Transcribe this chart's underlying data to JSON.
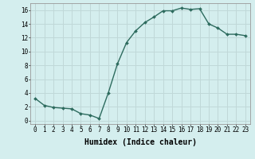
{
  "x": [
    0,
    1,
    2,
    3,
    4,
    5,
    6,
    7,
    8,
    9,
    10,
    11,
    12,
    13,
    14,
    15,
    16,
    17,
    18,
    19,
    20,
    21,
    22,
    23
  ],
  "y": [
    3.2,
    2.2,
    1.9,
    1.8,
    1.7,
    1.0,
    0.8,
    0.3,
    4.0,
    8.2,
    11.3,
    13.0,
    14.2,
    15.0,
    15.9,
    15.9,
    16.3,
    16.1,
    16.2,
    14.0,
    13.4,
    12.5,
    12.5,
    12.3
  ],
  "line_color": "#2d6b5e",
  "marker": "D",
  "marker_size": 2.0,
  "linewidth": 1.0,
  "bg_color": "#d4eeee",
  "grid_color": "#c0d8d8",
  "xlabel": "Humidex (Indice chaleur)",
  "xlabel_fontsize": 7,
  "yticks": [
    0,
    2,
    4,
    6,
    8,
    10,
    12,
    14,
    16
  ],
  "xtick_labels": [
    "0",
    "1",
    "2",
    "3",
    "4",
    "5",
    "6",
    "7",
    "8",
    "9",
    "10",
    "11",
    "12",
    "13",
    "14",
    "15",
    "16",
    "17",
    "18",
    "19",
    "20",
    "21",
    "22",
    "23"
  ],
  "xlim": [
    -0.5,
    23.5
  ],
  "ylim": [
    -0.5,
    17.0
  ],
  "tick_fontsize": 5.5
}
